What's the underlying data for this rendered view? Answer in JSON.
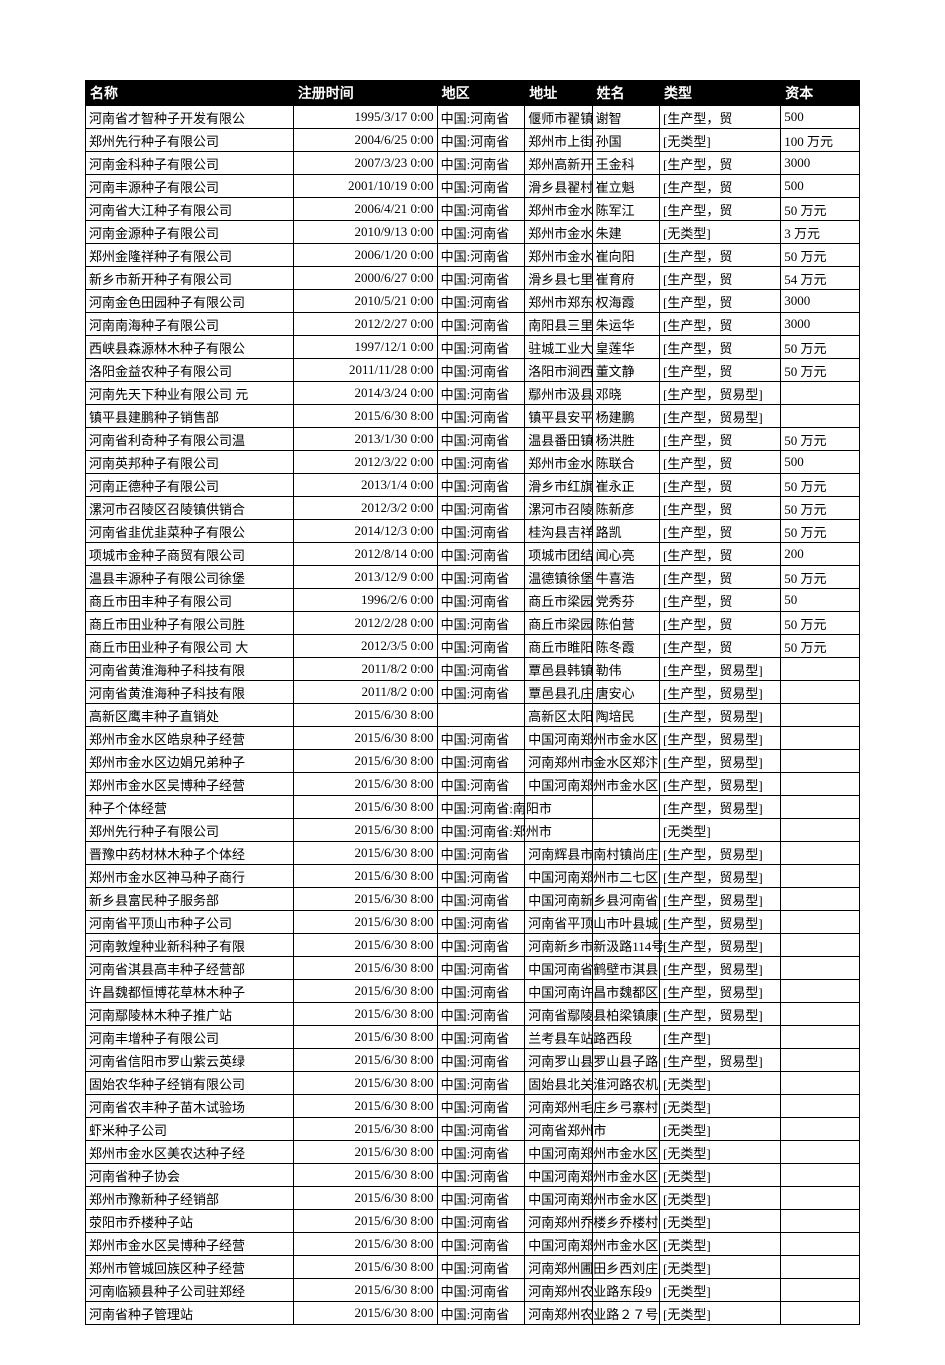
{
  "table": {
    "columns": [
      "名称",
      "注册时间",
      "地区",
      "地址",
      "姓名",
      "类型",
      "资本"
    ],
    "rows": [
      [
        "河南省才智种子开发有限公",
        "1995/3/17  0:00",
        "中国:河南省",
        "偃师市翟镇",
        "谢智",
        "[生产型，贸",
        "500"
      ],
      [
        "郑州先行种子有限公司",
        "2004/6/25  0:00",
        "中国:河南省",
        "郑州市上街",
        "孙国",
        "[无类型]",
        "100 万元"
      ],
      [
        "河南金科种子有限公司",
        "2007/3/23  0:00",
        "中国:河南省",
        "郑州高新开",
        "王金科",
        "[生产型，贸",
        "3000"
      ],
      [
        "河南丰源种子有限公司",
        "2001/10/19  0:00",
        "中国:河南省",
        "滑乡县翟村",
        "崔立魁",
        "[生产型，贸",
        "500"
      ],
      [
        "河南省大江种子有限公司",
        "2006/4/21  0:00",
        "中国:河南省",
        "郑州市金水",
        "陈军江",
        "[生产型，贸",
        "50 万元"
      ],
      [
        "河南金源种子有限公司",
        "2010/9/13  0:00",
        "中国:河南省",
        "郑州市金水",
        "朱建",
        "[无类型]",
        "3 万元"
      ],
      [
        "郑州金隆祥种子有限公司",
        "2006/1/20  0:00",
        "中国:河南省",
        "郑州市金水",
        "崔向阳",
        "[生产型，贸",
        "50 万元"
      ],
      [
        "新乡市新开种子有限公司",
        "2000/6/27  0:00",
        "中国:河南省",
        "滑乡县七里",
        "崔育府",
        "[生产型，贸",
        "54 万元"
      ],
      [
        "河南金色田园种子有限公司",
        "2010/5/21  0:00",
        "中国:河南省",
        "郑州市郑东",
        "权海霞",
        "[生产型，贸",
        "3000"
      ],
      [
        "河南南海种子有限公司",
        "2012/2/27  0:00",
        "中国:河南省",
        "南阳县三里",
        "朱运华",
        "[生产型，贸",
        "3000"
      ],
      [
        "西峡县森源林木种子有限公",
        "1997/12/1  0:00",
        "中国:河南省",
        "驻城工业大",
        "皇莲华",
        "[生产型，贸",
        "50 万元"
      ],
      [
        "洛阳金益农种子有限公司",
        "2011/11/28  0:00",
        "中国:河南省",
        "洛阳市涧西",
        "董文静",
        "[生产型，贸",
        "50 万元"
      ],
      [
        "河南先天下种业有限公司  元",
        "2014/3/24  0:00",
        "中国:河南省",
        "鄢州市汲县",
        "邓晓",
        "[生产型，贸易型]",
        ""
      ],
      [
        "镇平县建鹏种子销售部",
        "2015/6/30  8:00",
        "中国:河南省",
        "镇平县安平",
        "杨建鹏",
        "[生产型，贸易型]",
        ""
      ],
      [
        "河南省利奇种子有限公司温",
        "2013/1/30  0:00",
        "中国:河南省",
        "温县番田镇",
        "杨洪胜",
        "[生产型，贸",
        "50 万元"
      ],
      [
        "河南英邦种子有限公司",
        "2012/3/22  0:00",
        "中国:河南省",
        "郑州市金水",
        "陈联合",
        "[生产型，贸",
        "500"
      ],
      [
        "河南正德种子有限公司",
        "2013/1/4  0:00",
        "中国:河南省",
        "滑乡市红旗",
        "崔永正",
        "[生产型，贸",
        "50 万元"
      ],
      [
        "漯河市召陵区召陵镇供销合",
        "2012/3/2  0:00",
        "中国:河南省",
        "漯河市召陵",
        "陈新彦",
        "[生产型，贸",
        "50 万元"
      ],
      [
        "河南省韭优韭菜种子有限公",
        "2014/12/3  0:00",
        "中国:河南省",
        "桂沟县吉祥",
        "路凯",
        "[生产型，贸",
        "50 万元"
      ],
      [
        "项城市金种子商贸有限公司",
        "2012/8/14  0:00",
        "中国:河南省",
        "项城市团结",
        "闻心亮",
        "[生产型，贸",
        "200"
      ],
      [
        "温县丰源种子有限公司徐堡",
        "2013/12/9  0:00",
        "中国:河南省",
        "温德镇徐堡",
        "牛喜浩",
        "[生产型，贸",
        "50 万元"
      ],
      [
        "商丘市田丰种子有限公司",
        "1996/2/6  0:00",
        "中国:河南省",
        "商丘市梁园",
        "党秀芬",
        "[生产型，贸",
        "50"
      ],
      [
        "商丘市田业种子有限公司胜",
        "2012/2/28  0:00",
        "中国:河南省",
        "商丘市梁园",
        "陈伯营",
        "[生产型，贸",
        "50 万元"
      ],
      [
        "商丘市田业种子有限公司  大",
        "2012/3/5  0:00",
        "中国:河南省",
        "商丘市睢阳",
        "陈冬霞",
        "[生产型，贸",
        "50 万元"
      ],
      [
        "河南省黄淮海种子科技有限",
        "2011/8/2  0:00",
        "中国:河南省",
        "覃邑县韩镇",
        "勒伟",
        "[生产型，贸易型]",
        ""
      ],
      [
        "河南省黄淮海种子科技有限",
        "2011/8/2  0:00",
        "中国:河南省",
        "覃邑县孔庄",
        "唐安心",
        "[生产型，贸易型]",
        ""
      ],
      [
        "高新区鹰丰种子直销处",
        "2015/6/30  8:00",
        "",
        "高新区太阳",
        "陶培民",
        "[生产型，贸易型]",
        ""
      ],
      [
        "郑州市金水区皓泉种子经营",
        "2015/6/30  8:00",
        "中国:河南省",
        "中国河南郑州市金水区",
        "",
        "[生产型，贸易型]",
        ""
      ],
      [
        "郑州市金水区边娟兄弟种子",
        "2015/6/30  8:00",
        "中国:河南省",
        "河南郑州市金水区郑汴",
        "",
        "[生产型，贸易型]",
        ""
      ],
      [
        "郑州市金水区吴博种子经营",
        "2015/6/30  8:00",
        "中国:河南省",
        "中国河南郑州市金水区",
        "",
        "[生产型，贸易型]",
        ""
      ],
      [
        "种子个体经营",
        "2015/6/30  8:00",
        "中国:河南省:南阳市",
        "",
        "",
        "[生产型，贸易型]",
        ""
      ],
      [
        "郑州先行种子有限公司",
        "2015/6/30  8:00",
        "中国:河南省:郑州市",
        "",
        "",
        "[无类型]",
        ""
      ],
      [
        "晋豫中药材林木种子个体经",
        "2015/6/30  8:00",
        "中国:河南省",
        "河南辉县市南村镇尚庄",
        "",
        "[生产型，贸易型]",
        ""
      ],
      [
        "郑州市金水区神马种子商行",
        "2015/6/30  8:00",
        "中国:河南省",
        "中国河南郑州市二七区",
        "",
        "[生产型，贸易型]",
        ""
      ],
      [
        "新乡县富民种子服务部",
        "2015/6/30  8:00",
        "中国:河南省",
        "中国河南新乡县河南省",
        "",
        "[生产型，贸易型]",
        ""
      ],
      [
        "河南省平顶山市种子公司",
        "2015/6/30  8:00",
        "中国:河南省",
        "河南省平顶山市叶县城",
        "",
        "[生产型，贸易型]",
        ""
      ],
      [
        "河南敦煌种业新科种子有限",
        "2015/6/30  8:00",
        "中国:河南省",
        "河南新乡市新汲路114号",
        "",
        "[生产型，贸易型]",
        ""
      ],
      [
        "河南省淇县高丰种子经营部",
        "2015/6/30  8:00",
        "中国:河南省",
        "中国河南省鹤壁市淇县",
        "",
        "[生产型，贸易型]",
        ""
      ],
      [
        "许昌魏都恒博花草林木种子",
        "2015/6/30  8:00",
        "中国:河南省",
        "中国河南许昌市魏都区",
        "",
        "[生产型，贸易型]",
        ""
      ],
      [
        "河南鄢陵林木种子推广站",
        "2015/6/30  8:00",
        "中国:河南省",
        "河南省鄢陵县柏梁镇康",
        "",
        "[生产型，贸易型]",
        ""
      ],
      [
        "河南丰增种子有限公司",
        "2015/6/30  8:00",
        "中国:河南省",
        "兰考县车站路西段",
        "",
        "[生产型]",
        ""
      ],
      [
        "河南省信阳市罗山紫云英绿",
        "2015/6/30  8:00",
        "中国:河南省",
        "河南罗山县罗山县子路",
        "",
        "[生产型，贸易型]",
        ""
      ],
      [
        "固始农华种子经销有限公司",
        "2015/6/30  8:00",
        "中国:河南省",
        "固始县北关淮河路农机",
        "",
        "[无类型]",
        ""
      ],
      [
        "河南省农丰种子苗木试验场",
        "2015/6/30  8:00",
        "中国:河南省",
        "河南郑州毛庄乡弓寨村",
        "",
        "[无类型]",
        ""
      ],
      [
        "虾米种子公司",
        "2015/6/30  8:00",
        "中国:河南省",
        "河南省郑州市",
        "",
        "[无类型]",
        ""
      ],
      [
        "郑州市金水区美农达种子经",
        "2015/6/30  8:00",
        "中国:河南省",
        "中国河南郑州市金水区",
        "",
        "[无类型]",
        ""
      ],
      [
        "河南省种子协会",
        "2015/6/30  8:00",
        "中国:河南省",
        "中国河南郑州市金水区",
        "",
        "[无类型]",
        ""
      ],
      [
        "郑州市豫新种子经销部",
        "2015/6/30  8:00",
        "中国:河南省",
        "中国河南郑州市金水区",
        "",
        "[无类型]",
        ""
      ],
      [
        "荥阳市乔楼种子站",
        "2015/6/30  8:00",
        "中国:河南省",
        "河南郑州乔楼乡乔楼村",
        "",
        "[无类型]",
        ""
      ],
      [
        "郑州市金水区吴博种子经营",
        "2015/6/30  8:00",
        "中国:河南省",
        "中国河南郑州市金水区",
        "",
        "[无类型]",
        ""
      ],
      [
        "郑州市管城回族区种子经营",
        "2015/6/30  8:00",
        "中国:河南省",
        "河南郑州圃田乡西刘庄",
        "",
        "[无类型]",
        ""
      ],
      [
        "河南临颍县种子公司驻郑经",
        "2015/6/30  8:00",
        "中国:河南省",
        "河南郑州农业路东段9",
        "",
        "[无类型]",
        ""
      ],
      [
        "河南省种子管理站",
        "2015/6/30  8:00",
        "中国:河南省",
        "河南郑州农业路２７号",
        "",
        "[无类型]",
        ""
      ]
    ],
    "time_align": "right",
    "header_bg": "#000000",
    "header_fg": "#ffffff",
    "cell_bg": "#ffffff",
    "border_color": "#000000"
  }
}
